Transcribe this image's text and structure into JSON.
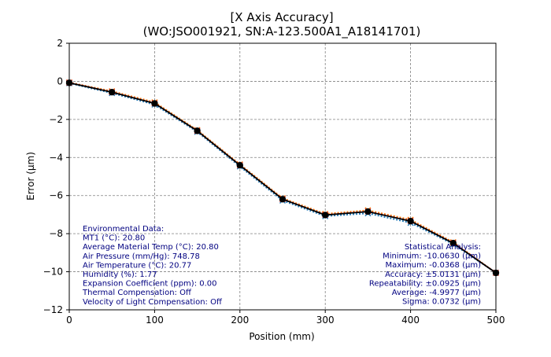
{
  "chart_data": {
    "type": "line",
    "title": "[X Axis Accuracy]",
    "subtitle": "(WO:JSO001921, SN:A-123.500A1_A18141701)",
    "xlabel": "Position (mm)",
    "ylabel": "Error (µm)",
    "xlim": [
      0,
      500
    ],
    "ylim": [
      -12,
      2
    ],
    "x_ticks": [
      0,
      100,
      200,
      300,
      400,
      500
    ],
    "y_ticks": [
      2,
      0,
      -2,
      -4,
      -6,
      -8,
      -10,
      -12
    ],
    "grid": true,
    "x": [
      0,
      50,
      100,
      150,
      200,
      250,
      300,
      350,
      400,
      450,
      500
    ],
    "series": [
      {
        "color": "#1f77b4",
        "style": "dotted",
        "marker": "x",
        "values": [
          -0.1,
          -0.62,
          -1.22,
          -2.65,
          -4.47,
          -6.26,
          -7.08,
          -6.93,
          -7.43,
          -8.55,
          -10.05
        ]
      },
      {
        "color": "#ff7f0e",
        "style": "dotted",
        "marker": "x",
        "values": [
          -0.06,
          -0.52,
          -1.1,
          -2.56,
          -4.36,
          -6.14,
          -6.96,
          -6.77,
          -7.27,
          -8.45,
          -10.06
        ]
      },
      {
        "color": "#d62728",
        "style": "dotted",
        "marker": "x",
        "values": [
          -0.07,
          -0.56,
          -1.15,
          -2.6,
          -4.4,
          -6.18,
          -7.01,
          -6.83,
          -7.33,
          -8.49,
          -10.06
        ]
      },
      {
        "color": "#000000",
        "style": "solid",
        "marker": "o",
        "values": [
          -0.08,
          -0.57,
          -1.16,
          -2.6,
          -4.41,
          -6.19,
          -7.02,
          -6.84,
          -7.34,
          -8.5,
          -10.06
        ]
      }
    ],
    "environmental_data": [
      "Environmental Data:",
      "MT1 (°C): 20.80",
      "Average Material Temp (°C): 20.80",
      "Air Pressure (mm/Hg): 748.78",
      "Air Temperature (°C): 20.77",
      "Humidity (%): 1.77",
      "Expansion Coefficient (ppm): 0.00",
      "Thermal Compensation: Off",
      "Velocity of Light Compensation: Off"
    ],
    "statistical_analysis": [
      "Statistical Analysis:",
      "Minimum: -10.0630 (µm)",
      "Maximum: -0.0368 (µm)",
      "Accuracy: ±5.0131 (µm)",
      "Repeatability: ±0.0925 (µm)",
      "Average: -4.9977 (µm)",
      "Sigma: 0.0732 (µm)"
    ],
    "annotation_color": "#000080"
  }
}
